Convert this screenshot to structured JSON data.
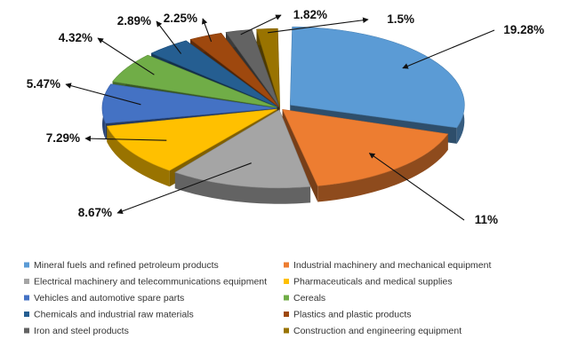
{
  "chart_data": {
    "type": "pie",
    "style": "3d-exploded",
    "title": "",
    "legend_position": "bottom",
    "slices": [
      {
        "name": "Mineral fuels and refined petroleum products",
        "value": 19.28,
        "label": "19.28%",
        "color": "#5b9bd5"
      },
      {
        "name": "Industrial machinery and mechanical equipment",
        "value": 11,
        "label": "11%",
        "color": "#ed7d31"
      },
      {
        "name": "Electrical machinery and telecommunications equipment",
        "value": 8.67,
        "label": "8.67%",
        "color": "#a5a5a5"
      },
      {
        "name": "Pharmaceuticals and medical supplies",
        "value": 7.29,
        "label": "7.29%",
        "color": "#ffc000"
      },
      {
        "name": "Vehicles and automotive spare parts",
        "value": 5.47,
        "label": "5.47%",
        "color": "#4472c4"
      },
      {
        "name": "Cereals",
        "value": 4.32,
        "label": "4.32%",
        "color": "#70ad47"
      },
      {
        "name": "Chemicals and industrial raw materials",
        "value": 2.89,
        "label": "2.89%",
        "color": "#255e91"
      },
      {
        "name": "Plastics and plastic products",
        "value": 2.25,
        "label": "2.25%",
        "color": "#9e480e"
      },
      {
        "name": "Iron and steel products",
        "value": 1.82,
        "label": "1.82%",
        "color": "#636363"
      },
      {
        "name": "Construction and engineering equipment",
        "value": 1.5,
        "label": "1.5%",
        "color": "#997300"
      }
    ]
  }
}
